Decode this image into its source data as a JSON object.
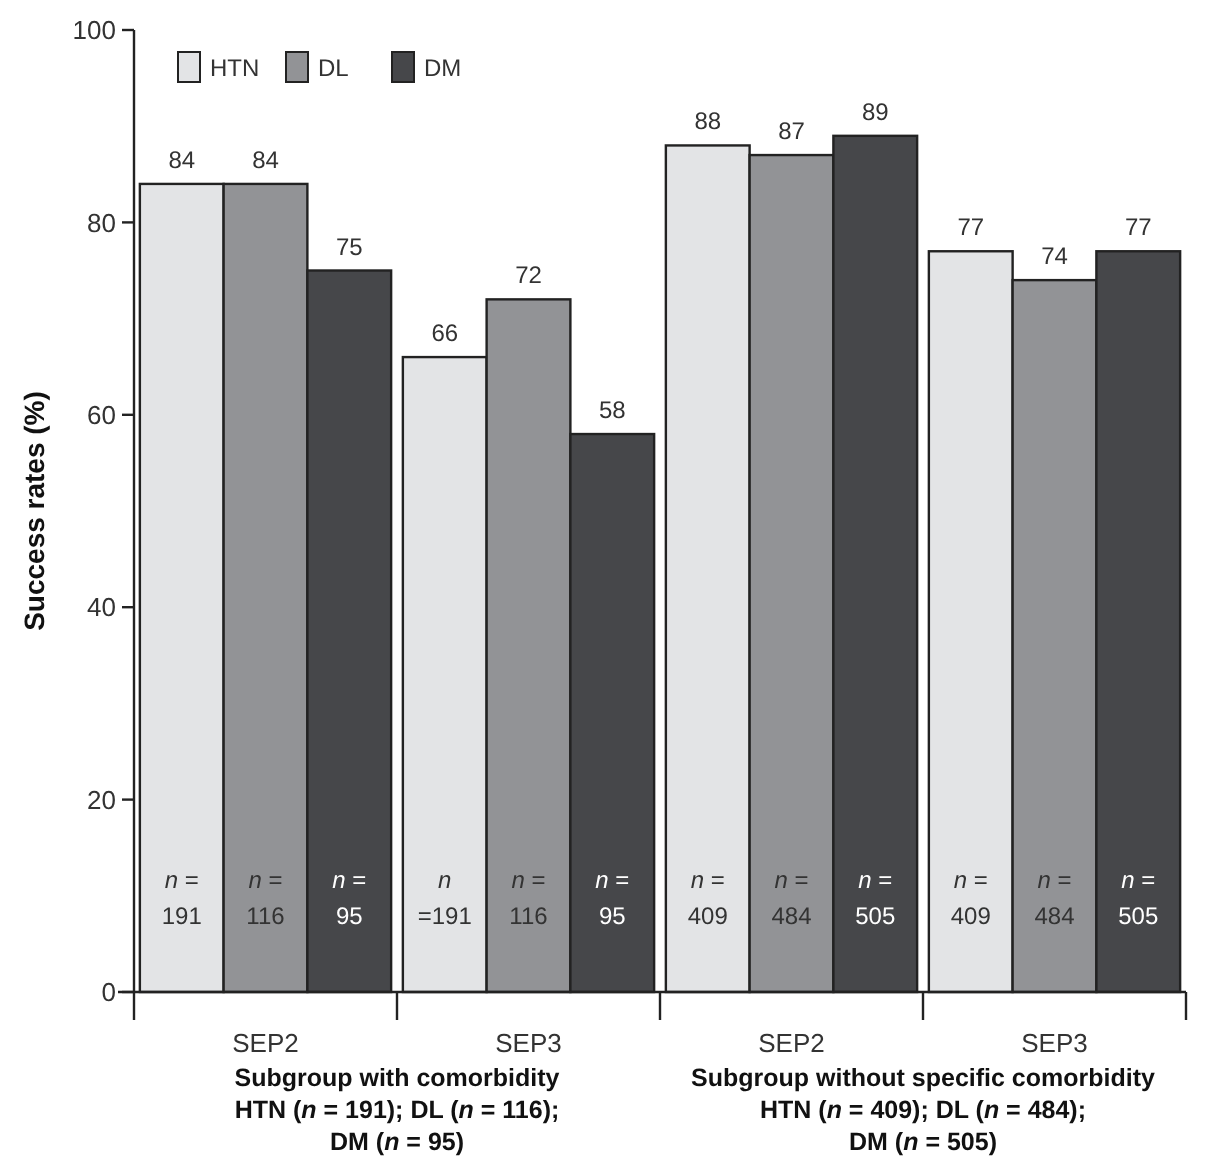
{
  "chart_data": {
    "type": "bar",
    "ylabel": "Success rates (%)",
    "categories": [
      "SEP2",
      "SEP3",
      "SEP2",
      "SEP3"
    ],
    "series": [
      {
        "name": "HTN",
        "color": "#e3e4e6",
        "values": [
          84,
          66,
          88,
          77
        ]
      },
      {
        "name": "DL",
        "color": "#929396",
        "values": [
          84,
          72,
          87,
          74
        ]
      },
      {
        "name": "DM",
        "color": "#46474a",
        "values": [
          75,
          58,
          89,
          77
        ]
      }
    ],
    "ylim": [
      0,
      100
    ],
    "yticks": [
      0,
      20,
      40,
      60,
      80,
      100
    ],
    "grid": false,
    "legend": "top left",
    "data_labels": true,
    "annotations": [
      "n = 191",
      "n =191",
      "n = 409",
      "n = 409",
      "n = 116",
      "n = 116",
      "n = 484",
      "n = 484",
      "n = 95",
      "n = 95",
      "n = 505",
      "n = 505",
      "Subgroup with comorbidity\nHTN (n = 191); DL (n = 116);\nDM (n = 95)",
      "Subgroup without specific comorbidity\nHTN (n = 409); DL (n = 484);\nDM (n = 505)"
    ]
  }
}
